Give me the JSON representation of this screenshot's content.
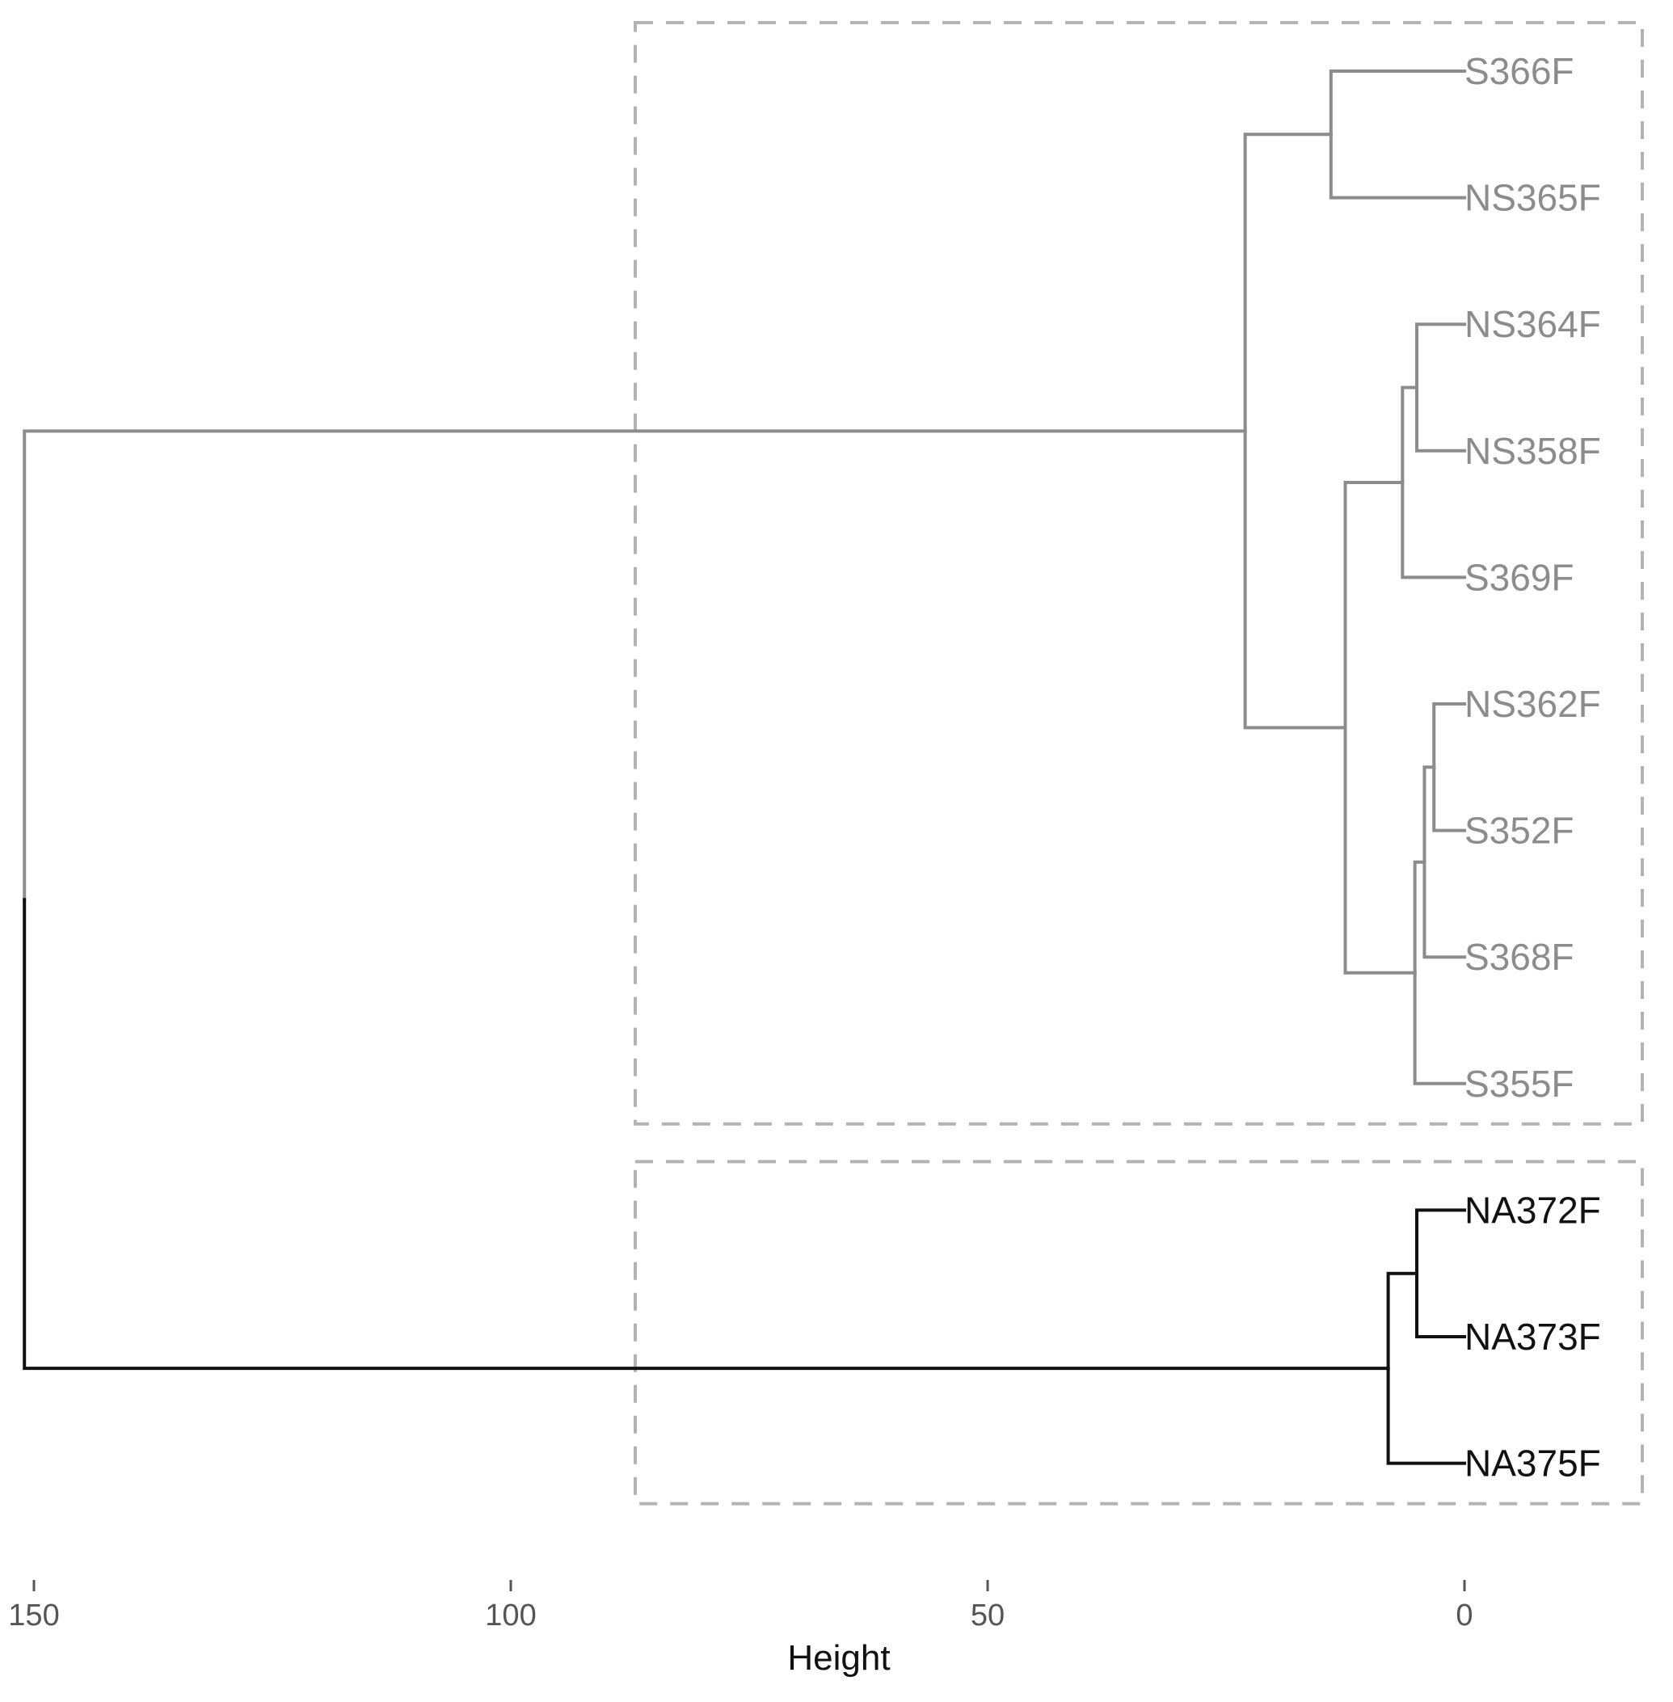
{
  "chart_data": {
    "type": "dendrogram",
    "orientation": "horizontal",
    "xlabel": "Height",
    "xlim": [
      152,
      -20
    ],
    "x_ticks": [
      150,
      100,
      50,
      0
    ],
    "leaves": [
      "S366F",
      "NS365F",
      "NS364F",
      "NS358F",
      "S369F",
      "NS362F",
      "S352F",
      "S368F",
      "S355F",
      "NA372F",
      "NA373F",
      "NA375F"
    ],
    "merges": [
      {
        "id": "m1",
        "children": [
          "NS364F",
          "NS358F"
        ],
        "height": 5
      },
      {
        "id": "m2",
        "children": [
          "m1",
          "S369F"
        ],
        "height": 6.5
      },
      {
        "id": "m3",
        "children": [
          "NS362F",
          "S352F"
        ],
        "height": 3.2
      },
      {
        "id": "m4",
        "children": [
          "m3",
          "S368F"
        ],
        "height": 4.2
      },
      {
        "id": "m5",
        "children": [
          "m4",
          "S355F"
        ],
        "height": 5.2
      },
      {
        "id": "m6",
        "children": [
          "m2",
          "m5"
        ],
        "height": 12.5
      },
      {
        "id": "m7",
        "children": [
          "S366F",
          "NS365F"
        ],
        "height": 14
      },
      {
        "id": "m8",
        "children": [
          "m7",
          "m6"
        ],
        "height": 23
      },
      {
        "id": "m9",
        "children": [
          "NA372F",
          "NA373F"
        ],
        "height": 5
      },
      {
        "id": "m10",
        "children": [
          "m9",
          "NA375F"
        ],
        "height": 8
      },
      {
        "id": "root",
        "children": [
          "m8",
          "m10"
        ],
        "height": 151
      }
    ],
    "clusters": [
      {
        "leaves": [
          "S366F",
          "NS365F",
          "NS364F",
          "NS358F",
          "S369F",
          "NS362F",
          "S352F",
          "S368F",
          "S355F"
        ],
        "color": "#8c8c8c"
      },
      {
        "leaves": [
          "NA372F",
          "NA373F",
          "NA375F"
        ],
        "color": "#111111"
      }
    ],
    "cluster_box_color": "#b3b3b3",
    "cluster_box_style": "dashed",
    "grid": false,
    "legend": "none"
  }
}
